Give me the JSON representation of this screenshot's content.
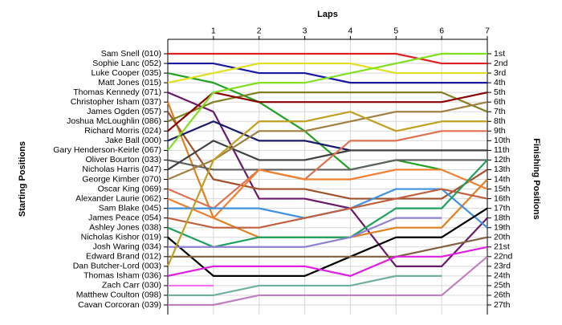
{
  "chart_data": {
    "type": "lap",
    "title": "Laps",
    "y_label": "Starting Positions",
    "y2_label": "Finishing Positions",
    "x": [
      0,
      1,
      2,
      3,
      4,
      5,
      6,
      7
    ],
    "xlim": [
      0,
      7
    ],
    "xticks": [
      1,
      2,
      3,
      4,
      5,
      6,
      7
    ],
    "ylim": [
      1,
      27
    ],
    "grid": true,
    "finishing_positions": [
      "1st",
      "2nd",
      "3rd",
      "4th",
      "5th",
      "6th",
      "7th",
      "8th",
      "9th",
      "10th",
      "11th",
      "12th",
      "13th",
      "14th",
      "15th",
      "16th",
      "17th",
      "18th",
      "19th",
      "20th",
      "21st",
      "22nd",
      "23rd",
      "24th",
      "25th",
      "26th",
      "27th"
    ],
    "series": [
      {
        "name": "Sam Snell (010)",
        "color": "#e02020",
        "values": [
          1,
          1,
          1,
          1,
          1,
          1,
          2,
          2
        ]
      },
      {
        "name": "Sophie Lanc (052)",
        "color": "#1a1aa0",
        "values": [
          2,
          2,
          3,
          3,
          4,
          4,
          4,
          4
        ]
      },
      {
        "name": "Luke Cooper (035)",
        "color": "#22a022",
        "values": [
          3,
          4,
          6,
          9,
          13,
          12,
          13,
          null
        ]
      },
      {
        "name": "Matt Jones (015)",
        "color": "#e0e020",
        "values": [
          4,
          3,
          2,
          2,
          2,
          3,
          3,
          3
        ]
      },
      {
        "name": "Thomas Kennedy (071)",
        "color": "#6a1a6a",
        "values": [
          5,
          7,
          16,
          16,
          17,
          23,
          23,
          18
        ]
      },
      {
        "name": "Christopher Isham (037)",
        "color": "#e08020",
        "values": [
          6,
          18,
          20,
          20,
          20,
          19,
          19,
          14
        ]
      },
      {
        "name": "James Ogden (057)",
        "color": "#a0522d",
        "values": [
          7,
          14,
          15,
          15,
          16,
          16,
          16,
          13
        ]
      },
      {
        "name": "Joshua McLoughlin (086)",
        "color": "#808020",
        "values": [
          8,
          6,
          5,
          5,
          5,
          5,
          5,
          7
        ]
      },
      {
        "name": "Richard Morris (024)",
        "color": "#8b0000",
        "values": [
          9,
          5,
          6,
          6,
          6,
          6,
          6,
          5
        ]
      },
      {
        "name": "Jake Ball (000)",
        "color": "#1a1a6a",
        "values": [
          10,
          8,
          10,
          10,
          11,
          null,
          null,
          null
        ]
      },
      {
        "name": "Gary Henderson-Keirle (067)",
        "color": "#80e020",
        "values": [
          11,
          5,
          4,
          4,
          3,
          2,
          1,
          1
        ]
      },
      {
        "name": "Oliver Bourton (033)",
        "color": "#606060",
        "values": [
          12,
          13,
          13,
          13,
          13,
          12,
          12,
          12
        ]
      },
      {
        "name": "Nicholas Harris (047)",
        "color": "#404040",
        "values": [
          13,
          10,
          12,
          12,
          11,
          11,
          11,
          11
        ]
      },
      {
        "name": "George Kimber (070)",
        "color": "#a08040",
        "values": [
          14,
          12,
          9,
          9,
          8,
          7,
          7,
          6
        ]
      },
      {
        "name": "Oscar King (069)",
        "color": "#e07050",
        "values": [
          15,
          17,
          13,
          14,
          10,
          10,
          9,
          9
        ]
      },
      {
        "name": "Alexander Laurie (062)",
        "color": "#f08030",
        "values": [
          16,
          18,
          13,
          14,
          14,
          13,
          13,
          15
        ]
      },
      {
        "name": "Sam Blake (045)",
        "color": "#4090e0",
        "values": [
          17,
          17,
          17,
          18,
          17,
          15,
          15,
          19
        ]
      },
      {
        "name": "James Peace (054)",
        "color": "#c06040",
        "values": [
          18,
          19,
          19,
          18,
          17,
          16,
          15,
          16
        ]
      },
      {
        "name": "Ashley Jones (038)",
        "color": "#20a060",
        "values": [
          19,
          21,
          20,
          20,
          20,
          17,
          17,
          12
        ]
      },
      {
        "name": "Nicholas Kishor (019)",
        "color": "#000000",
        "values": [
          20,
          24,
          24,
          24,
          22,
          20,
          20,
          17
        ]
      },
      {
        "name": "Josh Waring (034)",
        "color": "#9080d0",
        "values": [
          21,
          21,
          21,
          21,
          20,
          18,
          18,
          null
        ]
      },
      {
        "name": "Edward Brand (012)",
        "color": "#806040",
        "values": [
          22,
          22,
          22,
          22,
          22,
          22,
          21,
          20
        ]
      },
      {
        "name": "Dan Butcher-Lord (003)",
        "color": "#c0a020",
        "values": [
          23,
          12,
          8,
          8,
          7,
          9,
          8,
          8
        ]
      },
      {
        "name": "Thomas Isham (036)",
        "color": "#e020e0",
        "values": [
          24,
          23,
          23,
          23,
          24,
          22,
          22,
          21
        ]
      },
      {
        "name": "Zach Carr (030)",
        "color": "#f070f0",
        "values": [
          25,
          25,
          null,
          null,
          null,
          null,
          null,
          null
        ]
      },
      {
        "name": "Matthew Coulton (098)",
        "color": "#70b0a0",
        "values": [
          26,
          26,
          25,
          25,
          25,
          24,
          24,
          null
        ]
      },
      {
        "name": "Cavan Corcoran (039)",
        "color": "#c080c0",
        "values": [
          27,
          27,
          26,
          26,
          26,
          26,
          26,
          22
        ]
      }
    ]
  }
}
